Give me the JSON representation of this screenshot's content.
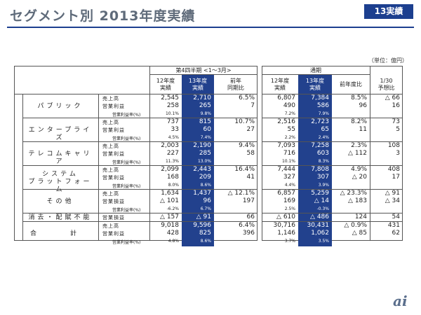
{
  "title": "セグメント別 2013年度実績",
  "badge": "13実績",
  "unit": "（単位：億円）",
  "headers": {
    "q4": "第4四半期 <1～3月>",
    "fy": "通期",
    "q4_prev": [
      "12年度",
      "実績"
    ],
    "q4_cur": [
      "13年度",
      "実績"
    ],
    "q4_yoy": [
      "前年",
      "同期比"
    ],
    "fy_prev": [
      "12年度",
      "実績"
    ],
    "fy_cur": [
      "13年度",
      "実績"
    ],
    "fy_yoy": "前年度比",
    "forecast": [
      "1/30",
      "予想比"
    ]
  },
  "segments": [
    {
      "name": "パブリック",
      "rows": [
        {
          "label": "売上高",
          "v": [
            "2,545",
            "2,710",
            "6.5%",
            "6,807",
            "7,384",
            "8.5%",
            "△ 66"
          ]
        },
        {
          "label": "営業利益",
          "v": [
            "258",
            "265",
            "7",
            "490",
            "586",
            "96",
            "16"
          ]
        },
        {
          "label": "営業利益率(%)",
          "v": [
            "10.1%",
            "9.8%",
            "",
            "7.2%",
            "7.9%",
            "",
            ""
          ]
        }
      ]
    },
    {
      "name": "エンタープライズ",
      "rows": [
        {
          "label": "売上高",
          "v": [
            "737",
            "815",
            "10.7%",
            "2,516",
            "2,723",
            "8.2%",
            "73"
          ]
        },
        {
          "label": "営業利益",
          "v": [
            "33",
            "60",
            "27",
            "55",
            "65",
            "11",
            "5"
          ]
        },
        {
          "label": "営業利益率(%)",
          "v": [
            "4.5%",
            "7.4%",
            "",
            "2.2%",
            "2.4%",
            "",
            ""
          ]
        }
      ]
    },
    {
      "name": "テレコムキャリア",
      "rows": [
        {
          "label": "売上高",
          "v": [
            "2,003",
            "2,190",
            "9.4%",
            "7,093",
            "7,258",
            "2.3%",
            "108"
          ]
        },
        {
          "label": "営業利益",
          "v": [
            "227",
            "285",
            "58",
            "716",
            "603",
            "△ 112",
            "3"
          ]
        },
        {
          "label": "営業利益率(%)",
          "v": [
            "11.3%",
            "13.0%",
            "",
            "10.1%",
            "8.3%",
            "",
            ""
          ]
        }
      ]
    },
    {
      "name": "システム\nプラットフォーム",
      "rows": [
        {
          "label": "売上高",
          "v": [
            "2,099",
            "2,443",
            "16.4%",
            "7,444",
            "7,808",
            "4.9%",
            "408"
          ]
        },
        {
          "label": "営業利益",
          "v": [
            "168",
            "209",
            "41",
            "327",
            "307",
            "△ 20",
            "17"
          ]
        },
        {
          "label": "営業利益率(%)",
          "v": [
            "8.0%",
            "8.6%",
            "",
            "4.4%",
            "3.9%",
            "",
            ""
          ]
        }
      ]
    },
    {
      "name": "その他",
      "rows": [
        {
          "label": "売上高",
          "v": [
            "1,634",
            "1,437",
            "△ 12.1%",
            "6,857",
            "5,259",
            "△ 23.3%",
            "△ 91"
          ]
        },
        {
          "label": "営業損益",
          "v": [
            "△ 101",
            "96",
            "197",
            "169",
            "△ 14",
            "△ 183",
            "△ 34"
          ]
        },
        {
          "label": "営業利益率(%)",
          "v": [
            "-6.2%",
            "6.7%",
            "",
            "2.5%",
            "-0.3%",
            "",
            ""
          ]
        }
      ]
    },
    {
      "name": "消去・配賦不能",
      "rows": [
        {
          "label": "営業損益",
          "v": [
            "△ 157",
            "△ 91",
            "66",
            "△ 610",
            "△ 486",
            "124",
            "54"
          ]
        }
      ]
    },
    {
      "name": "合　　計",
      "rows": [
        {
          "label": "売上高",
          "v": [
            "9,018",
            "9,596",
            "6.4%",
            "30,716",
            "30,431",
            "△ 0.9%",
            "431"
          ]
        },
        {
          "label": "営業利益",
          "v": [
            "428",
            "825",
            "396",
            "1,146",
            "1,062",
            "△ 85",
            "62"
          ]
        },
        {
          "label": "営業利益率(%)",
          "v": [
            "4.8%",
            "8.6%",
            "",
            "3.7%",
            "3.5%",
            "",
            ""
          ]
        }
      ]
    }
  ],
  "logo": "ai"
}
